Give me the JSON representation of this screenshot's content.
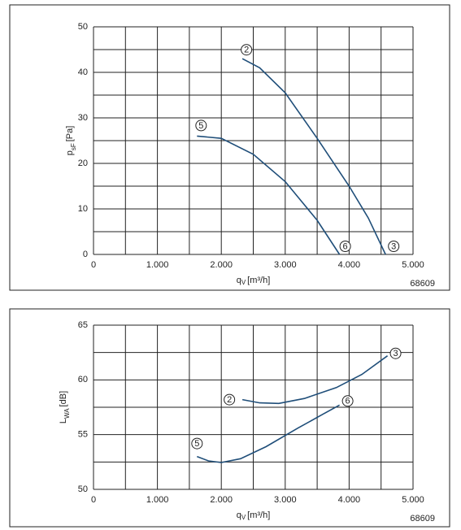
{
  "chart_data": [
    {
      "type": "line",
      "ylabel": {
        "main": "p",
        "sub": "sF",
        "unit": "[Pa]"
      },
      "xlabel": {
        "main": "q",
        "sub": "V",
        "unit": "[m³/h]"
      },
      "code": "68609",
      "xlim": [
        0,
        5000
      ],
      "xticks": [
        0,
        {
          "value": 1000,
          "label": "1.000"
        },
        {
          "value": 2000,
          "label": "2.000"
        },
        {
          "value": 3000,
          "label": "3.000"
        },
        {
          "value": 4000,
          "label": "4.000"
        },
        {
          "value": 5000,
          "label": "5.000"
        }
      ],
      "x_minor_ticks": [
        500,
        1500,
        2500,
        3500,
        4500
      ],
      "ylim": [
        0,
        50
      ],
      "yticks": [
        0,
        10,
        20,
        30,
        40,
        50
      ],
      "y_minor_ticks": [
        5,
        15,
        25,
        35,
        45
      ],
      "grid": true,
      "series": [
        {
          "start_label": "2",
          "end_label": "3",
          "color": "#1f4e79",
          "x": [
            2330,
            2600,
            3000,
            3500,
            4000,
            4300,
            4570
          ],
          "values": [
            43,
            41,
            35.5,
            25.5,
            15,
            8,
            0
          ]
        },
        {
          "start_label": "5",
          "end_label": "6",
          "color": "#1f4e79",
          "x": [
            1620,
            2000,
            2500,
            3000,
            3500,
            3850
          ],
          "values": [
            26,
            25.5,
            22,
            16,
            7.5,
            0
          ]
        }
      ]
    },
    {
      "type": "line",
      "ylabel": {
        "main": "L",
        "sub": "WA",
        "unit": "[dB]"
      },
      "xlabel": {
        "main": "q",
        "sub": "V",
        "unit": "[m³/h]"
      },
      "code": "68609",
      "xlim": [
        0,
        5000
      ],
      "xticks": [
        0,
        {
          "value": 1000,
          "label": "1.000"
        },
        {
          "value": 2000,
          "label": "2.000"
        },
        {
          "value": 3000,
          "label": "3.000"
        },
        {
          "value": 4000,
          "label": "4.000"
        },
        {
          "value": 5000,
          "label": "5.000"
        }
      ],
      "x_minor_ticks": [
        500,
        1500,
        2500,
        3500,
        4500
      ],
      "ylim": [
        50,
        65
      ],
      "yticks": [
        50,
        55,
        60,
        65
      ],
      "y_minor_ticks": [
        52.5,
        57.5,
        62.5
      ],
      "grid": true,
      "series": [
        {
          "start_label": "2",
          "end_label": "3",
          "color": "#1f4e79",
          "x": [
            2330,
            2600,
            2900,
            3300,
            3800,
            4200,
            4600
          ],
          "values": [
            58.2,
            57.9,
            57.85,
            58.3,
            59.3,
            60.5,
            62.2
          ]
        },
        {
          "start_label": "5",
          "end_label": "6",
          "color": "#1f4e79",
          "x": [
            1620,
            1800,
            2000,
            2300,
            2700,
            3200,
            3600,
            3850
          ],
          "values": [
            53,
            52.6,
            52.45,
            52.8,
            53.9,
            55.6,
            56.9,
            57.7
          ]
        }
      ]
    }
  ]
}
